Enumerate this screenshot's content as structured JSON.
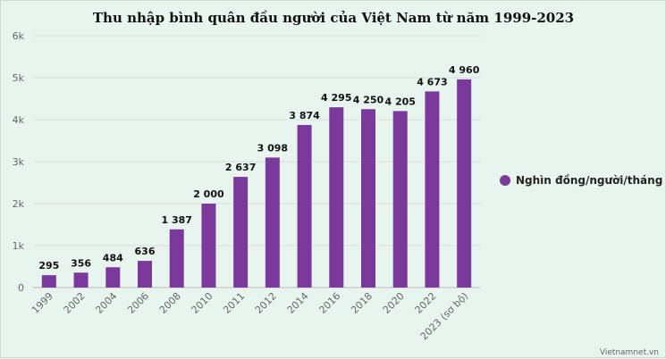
{
  "chart_data": {
    "type": "bar",
    "title": "Thu nhập bình quân đầu người của Việt Nam từ năm 1999-2023",
    "categories": [
      "1999",
      "2002",
      "2004",
      "2006",
      "2008",
      "2010",
      "2011",
      "2012",
      "2014",
      "2016",
      "2018",
      "2020",
      "2022",
      "2023 (sơ bộ)"
    ],
    "series": [
      {
        "name": "Nghìn đồng/người/tháng",
        "values": [
          295,
          356,
          484,
          636,
          1387,
          2000,
          2637,
          3098,
          3874,
          4295,
          4250,
          4205,
          4673,
          4960
        ]
      }
    ],
    "data_labels": [
      "295",
      "356",
      "484",
      "636",
      "1 387",
      "2 000",
      "2 637",
      "3 098",
      "3 874",
      "4 295",
      "4 250",
      "4 205",
      "4 673",
      "4 960"
    ],
    "y_ticks": [
      0,
      1000,
      2000,
      3000,
      4000,
      5000,
      6000
    ],
    "y_tick_labels": [
      "0",
      "1k",
      "2k",
      "3k",
      "4k",
      "5k",
      "6k"
    ],
    "ylim": [
      0,
      6000
    ],
    "xlabel": "",
    "ylabel": "",
    "grid": true,
    "legend_position": "right",
    "bar_color": "#7b3a9b"
  },
  "credit": "Vietnamnet.vn"
}
